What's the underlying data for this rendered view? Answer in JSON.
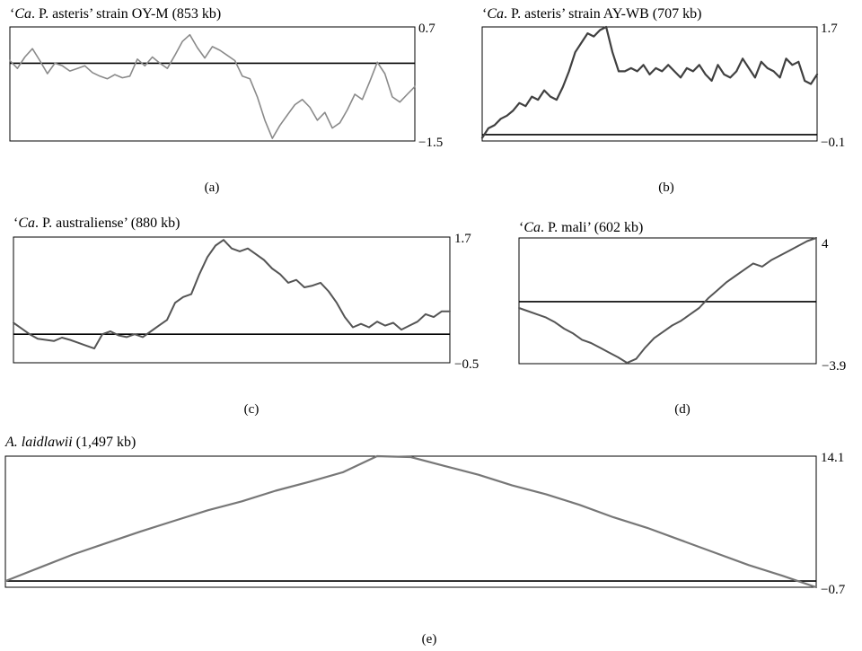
{
  "chart_data": [
    {
      "id": "a",
      "type": "line",
      "title_prefix": "‘",
      "title_italic": "Ca",
      "title_rest": ". P. asteris’ strain OY-M (853 kb)",
      "caption": "(a)",
      "ylim": [
        -1.5,
        0.7
      ],
      "ytick_max": "0.7",
      "ytick_min": "−1.5",
      "baseline": 0,
      "line_color": "#8a8a8a",
      "series": [
        {
          "values": [
            0.05,
            -0.1,
            0.12,
            0.28,
            0.05,
            -0.2,
            0.0,
            -0.05,
            -0.15,
            -0.1,
            -0.05,
            -0.18,
            -0.25,
            -0.3,
            -0.22,
            -0.28,
            -0.25,
            0.08,
            -0.05,
            0.12,
            0.0,
            -0.1,
            0.15,
            0.42,
            0.55,
            0.3,
            0.1,
            0.32,
            0.25,
            0.15,
            0.05,
            -0.25,
            -0.3,
            -0.65,
            -1.1,
            -1.45,
            -1.2,
            -1.0,
            -0.8,
            -0.7,
            -0.85,
            -1.1,
            -0.95,
            -1.25,
            -1.15,
            -0.9,
            -0.6,
            -0.7,
            -0.35,
            0.02,
            -0.2,
            -0.65,
            -0.75,
            -0.6,
            -0.45
          ]
        }
      ]
    },
    {
      "id": "b",
      "type": "line",
      "title_prefix": "‘",
      "title_italic": "Ca",
      "title_rest": ". P. asteris’ strain AY-WB (707 kb)",
      "caption": "(b)",
      "ylim": [
        -0.1,
        1.7
      ],
      "ytick_max": "1.7",
      "ytick_min": "−0.1",
      "baseline": 0,
      "line_color": "#404040",
      "series": [
        {
          "values": [
            -0.05,
            0.1,
            0.15,
            0.25,
            0.3,
            0.38,
            0.5,
            0.45,
            0.6,
            0.55,
            0.7,
            0.6,
            0.55,
            0.75,
            1.0,
            1.3,
            1.45,
            1.6,
            1.55,
            1.65,
            1.7,
            1.3,
            1.0,
            1.0,
            1.05,
            1.0,
            1.1,
            0.95,
            1.05,
            1.0,
            1.1,
            1.0,
            0.9,
            1.05,
            1.0,
            1.1,
            0.95,
            0.85,
            1.1,
            0.95,
            0.9,
            1.0,
            1.2,
            1.05,
            0.9,
            1.15,
            1.05,
            1.0,
            0.9,
            1.2,
            1.1,
            1.15,
            0.85,
            0.8,
            0.95
          ]
        }
      ]
    },
    {
      "id": "c",
      "type": "line",
      "title_prefix": "‘",
      "title_italic": "Ca",
      "title_rest": ". P. australiense’ (880 kb)",
      "caption": "(c)",
      "ylim": [
        -0.5,
        1.7
      ],
      "ytick_max": "1.7",
      "ytick_min": "−0.5",
      "baseline": 0,
      "line_color": "#555555",
      "series": [
        {
          "values": [
            0.2,
            0.1,
            0.0,
            -0.08,
            -0.1,
            -0.12,
            -0.06,
            -0.1,
            -0.15,
            -0.2,
            -0.25,
            0.0,
            0.05,
            -0.02,
            -0.05,
            0.0,
            -0.05,
            0.05,
            0.15,
            0.25,
            0.55,
            0.65,
            0.7,
            1.05,
            1.35,
            1.55,
            1.65,
            1.5,
            1.45,
            1.5,
            1.4,
            1.3,
            1.15,
            1.05,
            0.9,
            0.95,
            0.82,
            0.85,
            0.9,
            0.75,
            0.55,
            0.3,
            0.12,
            0.18,
            0.12,
            0.22,
            0.15,
            0.2,
            0.08,
            0.15,
            0.22,
            0.35,
            0.3,
            0.4,
            0.4
          ]
        }
      ]
    },
    {
      "id": "d",
      "type": "line",
      "title_prefix": "‘",
      "title_italic": "Ca",
      "title_rest": ". P. mali’ (602 kb)",
      "caption": "(d)",
      "ylim": [
        -3.9,
        4
      ],
      "ytick_max": "4",
      "ytick_min": "−3.9",
      "baseline": 0,
      "line_color": "#555555",
      "series": [
        {
          "values": [
            -0.4,
            -0.6,
            -0.8,
            -1.0,
            -1.3,
            -1.7,
            -2.0,
            -2.4,
            -2.6,
            -2.9,
            -3.2,
            -3.5,
            -3.85,
            -3.6,
            -2.9,
            -2.3,
            -1.9,
            -1.5,
            -1.2,
            -0.8,
            -0.4,
            0.2,
            0.7,
            1.2,
            1.6,
            2.0,
            2.4,
            2.2,
            2.6,
            2.9,
            3.2,
            3.5,
            3.8,
            4.0
          ]
        }
      ]
    },
    {
      "id": "e",
      "type": "line",
      "title_prefix": "",
      "title_italic": "A. laidlawii",
      "title_rest": " (1,497 kb)",
      "caption": "(e)",
      "ylim": [
        -0.7,
        14.1
      ],
      "ytick_max": "14.1",
      "ytick_min": "−0.7",
      "baseline": 0,
      "line_color": "#777777",
      "series": [
        {
          "values": [
            0.0,
            1.5,
            3.0,
            4.3,
            5.6,
            6.8,
            8.0,
            9.0,
            10.2,
            11.2,
            12.3,
            14.1,
            14.0,
            13.0,
            12.0,
            10.8,
            9.8,
            8.6,
            7.2,
            6.0,
            4.6,
            3.2,
            1.8,
            0.6,
            -0.7
          ]
        }
      ]
    }
  ]
}
